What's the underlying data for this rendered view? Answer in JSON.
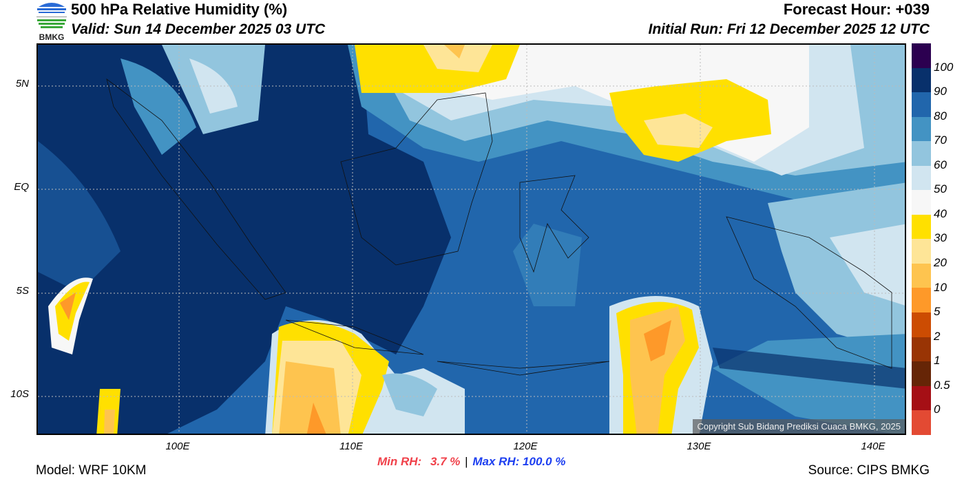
{
  "header": {
    "title": "500 hPa Relative Humidity (%)",
    "valid": "Valid: Sun 14 December 2025 03 UTC",
    "forecast_hour": "Forecast Hour: +039",
    "initial_run": "Initial Run: Fri 12 December 2025 12 UTC",
    "logo_text": "BMKG"
  },
  "map": {
    "lat_labels": [
      "5N",
      "EQ",
      "5S",
      "10S"
    ],
    "lon_labels": [
      "100E",
      "110E",
      "120E",
      "130E",
      "140E"
    ],
    "copyright": "Copyright Sub Bidang Prediksi Cuaca BMKG, 2025"
  },
  "colorbar": {
    "labels": [
      "100",
      "90",
      "80",
      "70",
      "60",
      "50",
      "40",
      "30",
      "20",
      "10",
      "5",
      "2",
      "1",
      "0.5",
      "0"
    ],
    "colors": [
      "#2c0050",
      "#08306b",
      "#2166ac",
      "#4393c3",
      "#92c5de",
      "#d1e5f0",
      "#f7f7f7",
      "#ffe000",
      "#fee597",
      "#fec44f",
      "#fe9929",
      "#cc4c02",
      "#993404",
      "#662506",
      "#a50f15",
      "#e34a33"
    ]
  },
  "footer": {
    "min_label": "Min RH:",
    "min_value": "3.7 %",
    "separator": "|",
    "max_text": "Max RH: 100.0 %",
    "model": "Model: WRF 10KM",
    "source": "Source: CIPS BMKG"
  }
}
